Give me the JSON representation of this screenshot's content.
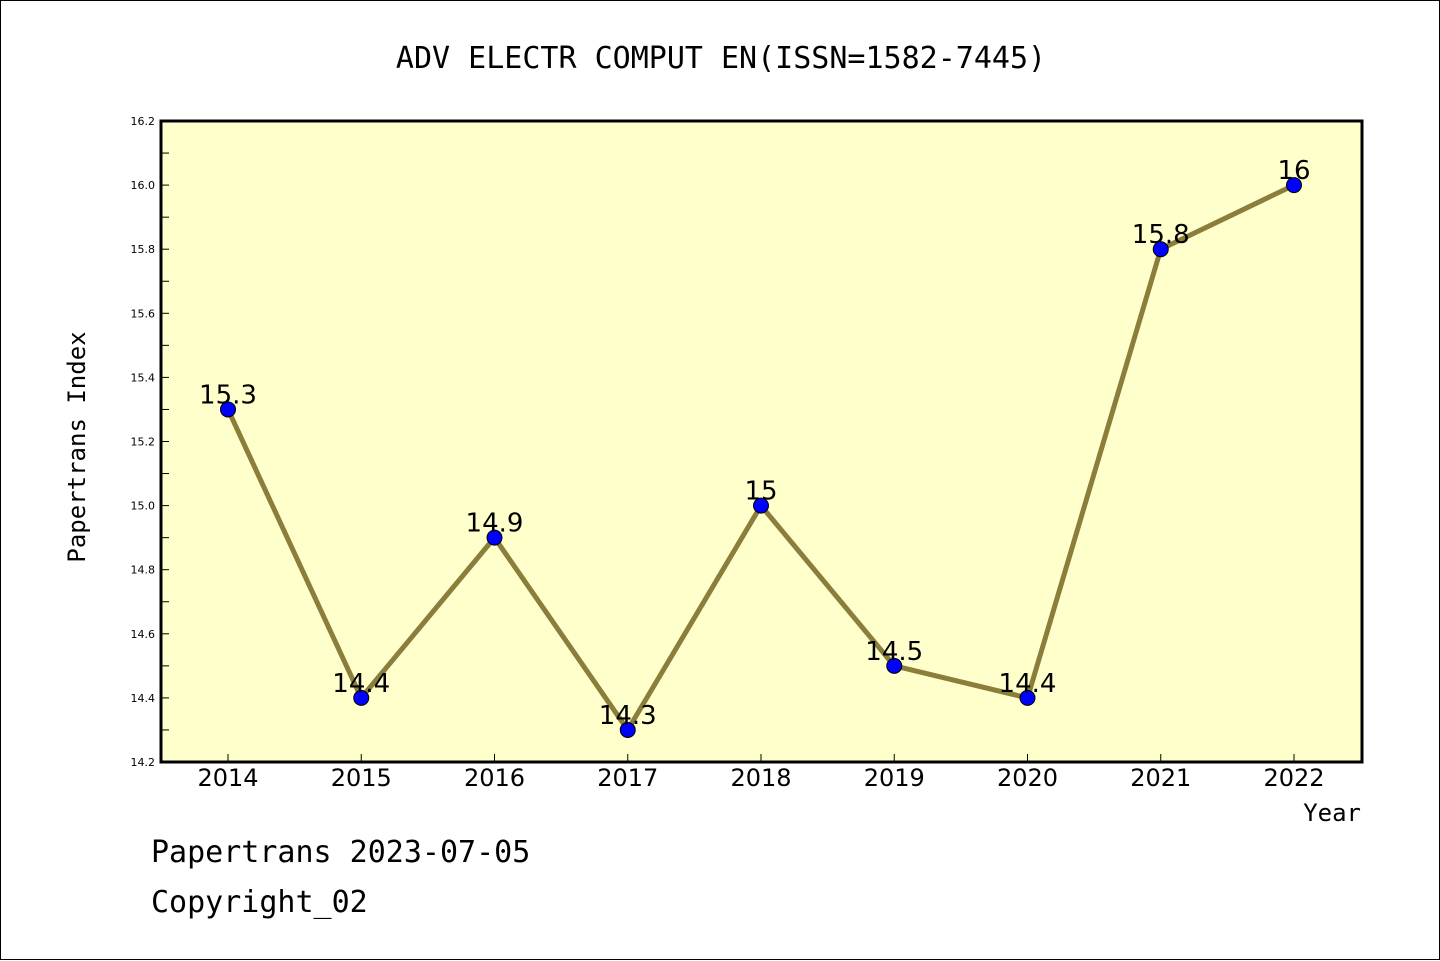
{
  "chart_data": {
    "type": "line",
    "title": "ADV ELECTR COMPUT EN(ISSN=1582-7445)",
    "xlabel": "Year",
    "ylabel": "Papertrans Index",
    "categories": [
      "2014",
      "2015",
      "2016",
      "2017",
      "2018",
      "2019",
      "2020",
      "2021",
      "2022"
    ],
    "series": [
      {
        "values": [
          15.3,
          14.4,
          14.9,
          14.3,
          15.0,
          14.5,
          14.4,
          15.8,
          16.0
        ],
        "labels": [
          "15.3",
          "14.4",
          "14.9",
          "14.3",
          "15",
          "14.5",
          "14.4",
          "15.8",
          "16"
        ]
      }
    ],
    "ylim": [
      14.2,
      16.2
    ],
    "yticks": [
      "14.2",
      "14.4",
      "14.6",
      "14.8",
      "15.0",
      "15.2",
      "15.4",
      "15.6",
      "15.8",
      "16.0",
      "16.2"
    ],
    "grid": false,
    "legend": "none",
    "colors": {
      "plot_background": "#ffffcc",
      "line": "#8b7d3a",
      "marker": "#0000ff",
      "axis": "#000000"
    }
  },
  "footer": {
    "date_line": "Papertrans 2023-07-05",
    "copyright_line": "Copyright_02"
  }
}
